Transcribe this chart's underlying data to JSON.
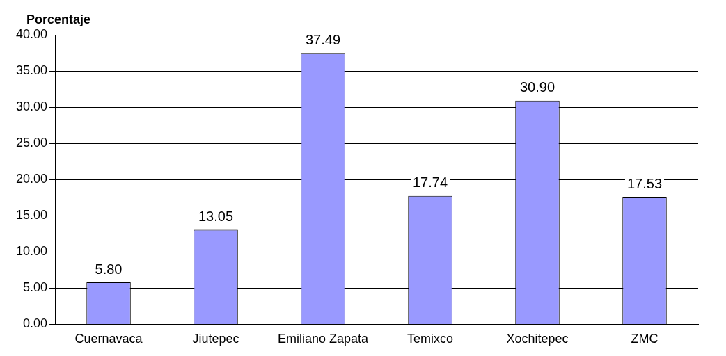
{
  "chart_data": {
    "type": "bar",
    "ylabel": "Porcentaje",
    "categories": [
      "Cuernavaca",
      "Jiutepec",
      "Emiliano Zapata",
      "Temixco",
      "Xochitepec",
      "ZMC"
    ],
    "values": [
      5.8,
      13.05,
      37.49,
      17.74,
      30.9,
      17.53
    ],
    "value_labels": [
      "5.80",
      "13.05",
      "37.49",
      "17.74",
      "30.90",
      "17.53"
    ],
    "color": "#9999ff",
    "ylim": [
      0,
      40
    ],
    "yticks": [
      {
        "value": 0,
        "label": "0.00"
      },
      {
        "value": 5,
        "label": "5.00"
      },
      {
        "value": 10,
        "label": "10.00"
      },
      {
        "value": 15,
        "label": "15.00"
      },
      {
        "value": 20,
        "label": "20.00"
      },
      {
        "value": 25,
        "label": "25.00"
      },
      {
        "value": 30,
        "label": "30.00"
      },
      {
        "value": 35,
        "label": "35.00"
      },
      {
        "value": 40,
        "label": "40.00"
      }
    ],
    "grid": "y",
    "legend": false
  }
}
